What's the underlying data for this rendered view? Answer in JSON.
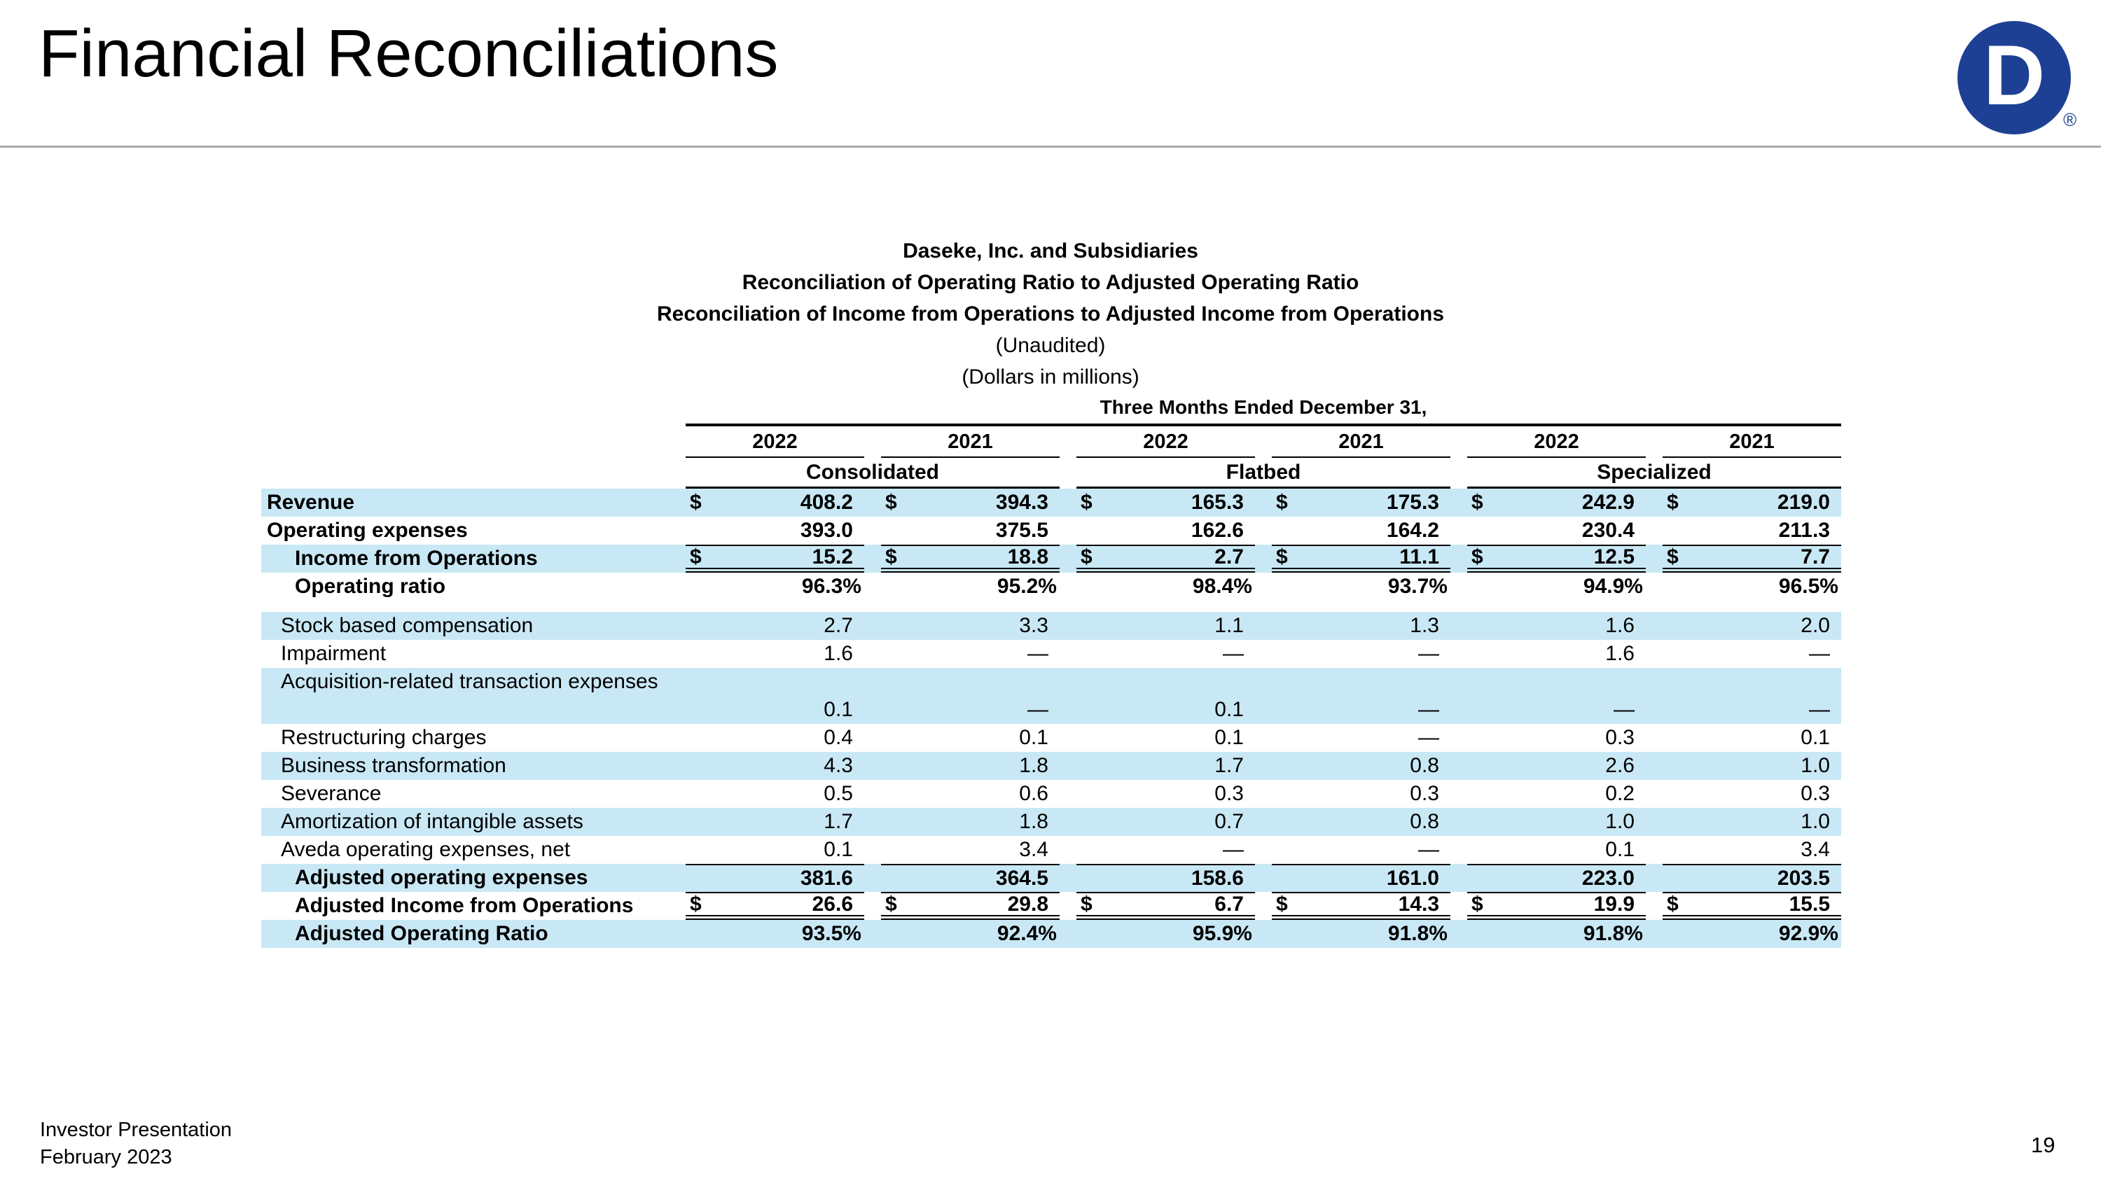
{
  "slide": {
    "title": "Financial Reconciliations",
    "footer_line1": "Investor Presentation",
    "footer_line2": "February 2023",
    "page_number": "19",
    "logo_letter": "D",
    "logo_registered": "®"
  },
  "colors": {
    "row_highlight_blue": "#c9e8f5",
    "logo_blue": "#1e4094",
    "title_rule_gray": "#a9a9a9"
  },
  "table": {
    "heading_lines": [
      {
        "text": "Daseke, Inc. and Subsidiaries",
        "bold": true
      },
      {
        "text": "Reconciliation of Operating Ratio to Adjusted Operating Ratio",
        "bold": true
      },
      {
        "text": "Reconciliation of Income from Operations to Adjusted Income from Operations",
        "bold": true
      },
      {
        "text": "(Unaudited)",
        "bold": false
      },
      {
        "text": "(Dollars in millions)",
        "bold": false
      }
    ],
    "col_span_header": "Three Months Ended December 31,",
    "year_headers": [
      "2022",
      "2021",
      "2022",
      "2021",
      "2022",
      "2021"
    ],
    "group_headers": [
      "Consolidated",
      "Flatbed",
      "Specialized"
    ],
    "rows": [
      {
        "label": "Revenue",
        "bold": true,
        "indent": 0,
        "bg": "blue",
        "dollar": true,
        "values": [
          "408.2",
          "394.3",
          "165.3",
          "175.3",
          "242.9",
          "219.0"
        ]
      },
      {
        "label": "Operating expenses",
        "bold": true,
        "indent": 0,
        "bg": "white",
        "values": [
          "393.0",
          "375.5",
          "162.6",
          "164.2",
          "230.4",
          "211.3"
        ]
      },
      {
        "label": "Income from Operations",
        "bold": true,
        "indent": 2,
        "bg": "blue",
        "dollar": true,
        "topline": true,
        "doubleline": true,
        "values": [
          "15.2",
          "18.8",
          "2.7",
          "11.1",
          "12.5",
          "7.7"
        ]
      },
      {
        "label": "Operating ratio",
        "bold": true,
        "indent": 2,
        "bg": "white",
        "pct": true,
        "values": [
          "96.3%",
          "95.2%",
          "98.4%",
          "93.7%",
          "94.9%",
          "96.5%"
        ]
      },
      {
        "label": "Stock based compensation",
        "bold": false,
        "indent": 1,
        "bg": "blue",
        "gap_before": true,
        "values": [
          "2.7",
          "3.3",
          "1.1",
          "1.3",
          "1.6",
          "2.0"
        ]
      },
      {
        "label": "Impairment",
        "bold": false,
        "indent": 1,
        "bg": "white",
        "values": [
          "1.6",
          "—",
          "—",
          "—",
          "1.6",
          "—"
        ]
      },
      {
        "label": "Acquisition-related transaction expenses",
        "bold": false,
        "indent": 1,
        "bg": "blue",
        "twoline": true,
        "values": [
          "0.1",
          "—",
          "0.1",
          "—",
          "—",
          "—"
        ]
      },
      {
        "label": "Restructuring charges",
        "bold": false,
        "indent": 1,
        "bg": "white",
        "values": [
          "0.4",
          "0.1",
          "0.1",
          "—",
          "0.3",
          "0.1"
        ]
      },
      {
        "label": "Business transformation",
        "bold": false,
        "indent": 1,
        "bg": "blue",
        "values": [
          "4.3",
          "1.8",
          "1.7",
          "0.8",
          "2.6",
          "1.0"
        ]
      },
      {
        "label": "Severance",
        "bold": false,
        "indent": 1,
        "bg": "white",
        "values": [
          "0.5",
          "0.6",
          "0.3",
          "0.3",
          "0.2",
          "0.3"
        ]
      },
      {
        "label": "Amortization of intangible assets",
        "bold": false,
        "indent": 1,
        "bg": "blue",
        "values": [
          "1.7",
          "1.8",
          "0.7",
          "0.8",
          "1.0",
          "1.0"
        ]
      },
      {
        "label": "Aveda operating expenses, net",
        "bold": false,
        "indent": 1,
        "bg": "white",
        "values": [
          "0.1",
          "3.4",
          "—",
          "—",
          "0.1",
          "3.4"
        ]
      },
      {
        "label": "Adjusted operating expenses",
        "bold": true,
        "indent": 2,
        "bg": "blue",
        "topline": true,
        "values": [
          "381.6",
          "364.5",
          "158.6",
          "161.0",
          "223.0",
          "203.5"
        ]
      },
      {
        "label": "Adjusted Income from Operations",
        "bold": true,
        "indent": 2,
        "bg": "white",
        "dollar": true,
        "topline": true,
        "doubleline": true,
        "values": [
          "26.6",
          "29.8",
          "6.7",
          "14.3",
          "19.9",
          "15.5"
        ]
      },
      {
        "label": "Adjusted Operating Ratio",
        "bold": true,
        "indent": 2,
        "bg": "blue",
        "pct": true,
        "values": [
          "93.5%",
          "92.4%",
          "95.9%",
          "91.8%",
          "91.8%",
          "92.9%"
        ]
      }
    ]
  }
}
